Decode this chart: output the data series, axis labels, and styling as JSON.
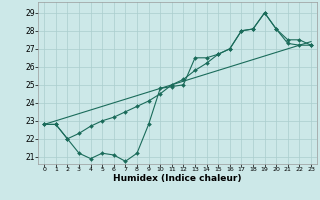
{
  "title": "",
  "xlabel": "Humidex (Indice chaleur)",
  "bg_color": "#cce8e8",
  "line_color": "#1a6b5a",
  "grid_color": "#aacece",
  "xlim": [
    -0.5,
    23.5
  ],
  "ylim": [
    20.6,
    29.6
  ],
  "xticks": [
    0,
    1,
    2,
    3,
    4,
    5,
    6,
    7,
    8,
    9,
    10,
    11,
    12,
    13,
    14,
    15,
    16,
    17,
    18,
    19,
    20,
    21,
    22,
    23
  ],
  "yticks": [
    21,
    22,
    23,
    24,
    25,
    26,
    27,
    28,
    29
  ],
  "series1_x": [
    0,
    1,
    2,
    3,
    4,
    5,
    6,
    7,
    8,
    9,
    10,
    11,
    12,
    13,
    14,
    15,
    16,
    17,
    18,
    19,
    20,
    21,
    22,
    23
  ],
  "series1_y": [
    22.8,
    22.8,
    22.0,
    21.2,
    20.9,
    21.2,
    21.1,
    20.75,
    21.2,
    22.8,
    24.8,
    24.9,
    25.0,
    26.5,
    26.5,
    26.7,
    27.0,
    28.0,
    28.1,
    29.0,
    28.1,
    27.3,
    27.2,
    27.2
  ],
  "series2_x": [
    0,
    23
  ],
  "series2_y": [
    22.8,
    27.4
  ],
  "series3_x": [
    0,
    1,
    2,
    3,
    4,
    5,
    6,
    7,
    8,
    9,
    10,
    11,
    12,
    13,
    14,
    15,
    16,
    17,
    18,
    19,
    20,
    21,
    22,
    23
  ],
  "series3_y": [
    22.8,
    22.8,
    22.0,
    22.3,
    22.7,
    23.0,
    23.2,
    23.5,
    23.8,
    24.1,
    24.5,
    25.0,
    25.3,
    25.8,
    26.2,
    26.7,
    27.0,
    28.0,
    28.1,
    29.0,
    28.1,
    27.5,
    27.5,
    27.2
  ]
}
